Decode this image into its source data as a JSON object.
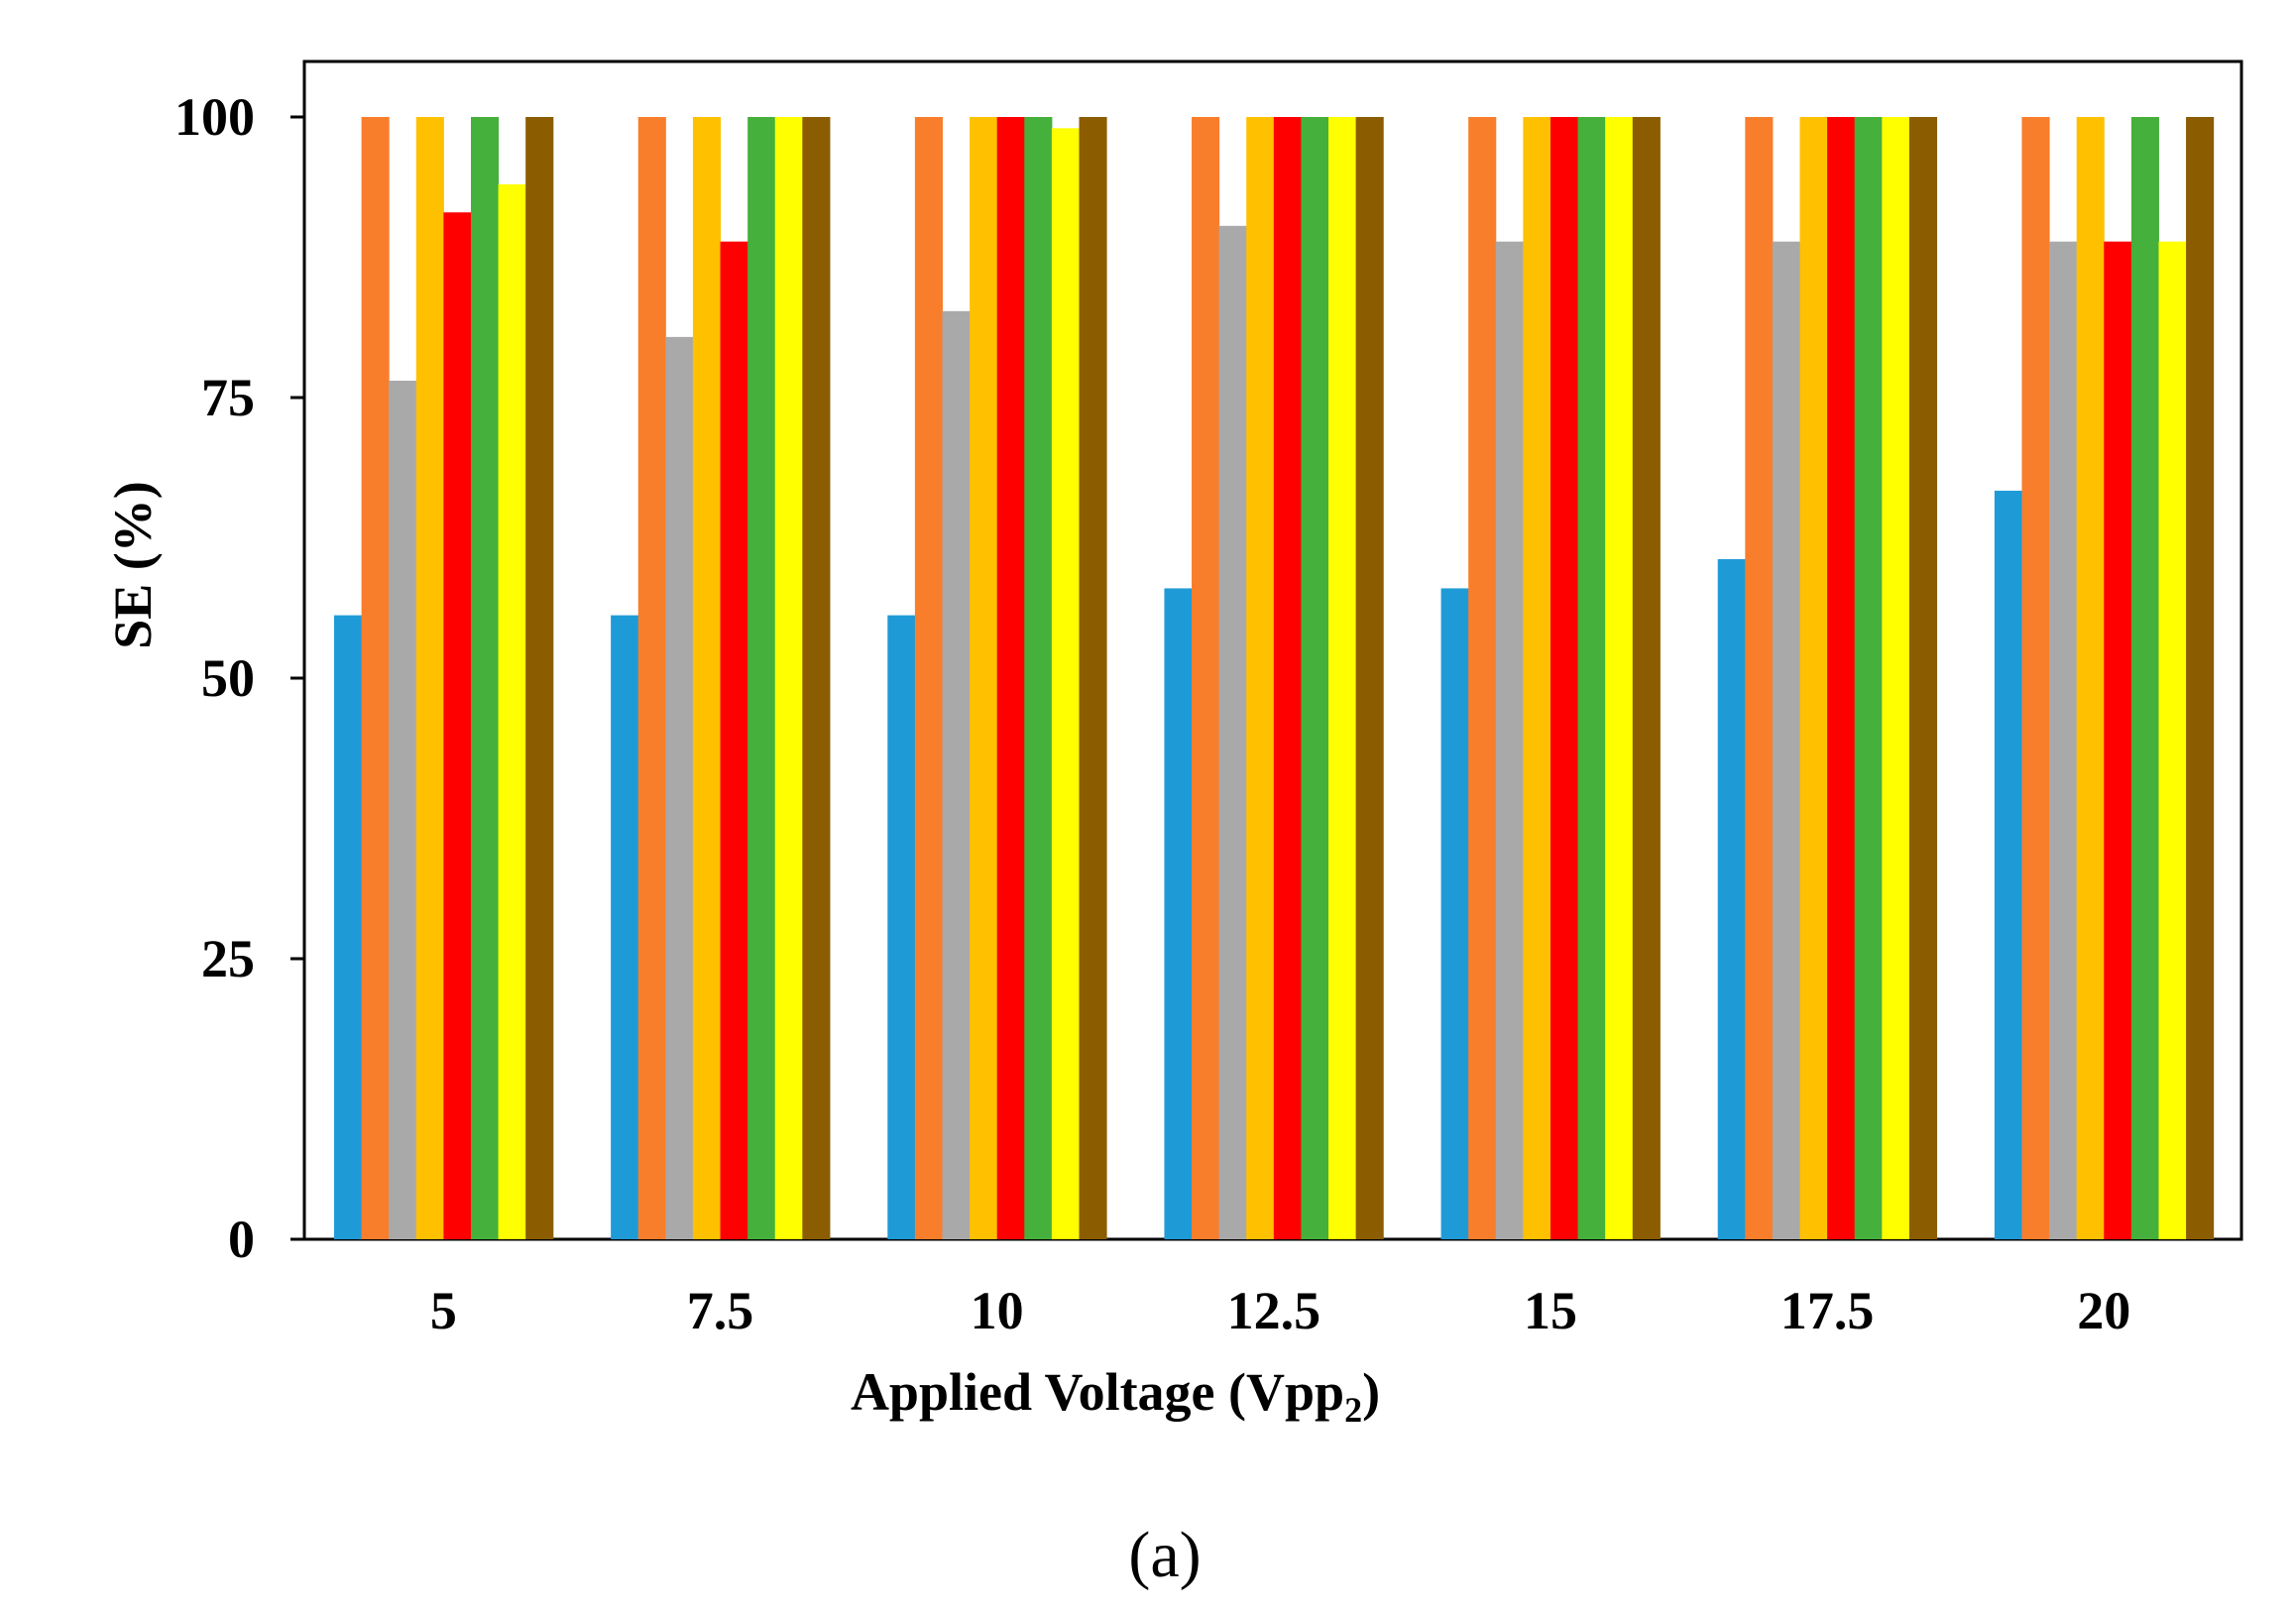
{
  "chart_data": {
    "type": "bar",
    "xlabel": "Applied Voltage  (Vpp",
    "xlabel_subscript": "2",
    "xlabel_close": ")",
    "ylabel": "SE (%)",
    "caption": "(a)",
    "ylim": [
      0,
      105
    ],
    "yticks": [
      0,
      25,
      50,
      75,
      100
    ],
    "grid": false,
    "categories": [
      "5",
      "7.5",
      "10",
      "12.5",
      "15",
      "17.5",
      "20"
    ],
    "series": [
      {
        "color": "#1e9bd7",
        "values": [
          55.6,
          55.6,
          55.6,
          58.0,
          58.0,
          60.6,
          66.7
        ]
      },
      {
        "color": "#f97e2b",
        "values": [
          100,
          100,
          100,
          100,
          100,
          100,
          100
        ]
      },
      {
        "color": "#a9a9a9",
        "values": [
          76.5,
          80.4,
          82.7,
          90.3,
          88.9,
          88.9,
          88.9
        ]
      },
      {
        "color": "#ffc000",
        "values": [
          100,
          100,
          100,
          100,
          100,
          100,
          100
        ]
      },
      {
        "color": "#ff0000",
        "values": [
          91.5,
          88.9,
          100,
          100,
          100,
          100,
          88.9
        ]
      },
      {
        "color": "#45b03c",
        "values": [
          100,
          100,
          100,
          100,
          100,
          100,
          100
        ]
      },
      {
        "color": "#ffff00",
        "values": [
          94.0,
          100,
          99.0,
          100,
          100,
          100,
          88.9
        ]
      },
      {
        "color": "#8b5c00",
        "values": [
          100,
          100,
          100,
          100,
          100,
          100,
          100
        ]
      }
    ]
  }
}
